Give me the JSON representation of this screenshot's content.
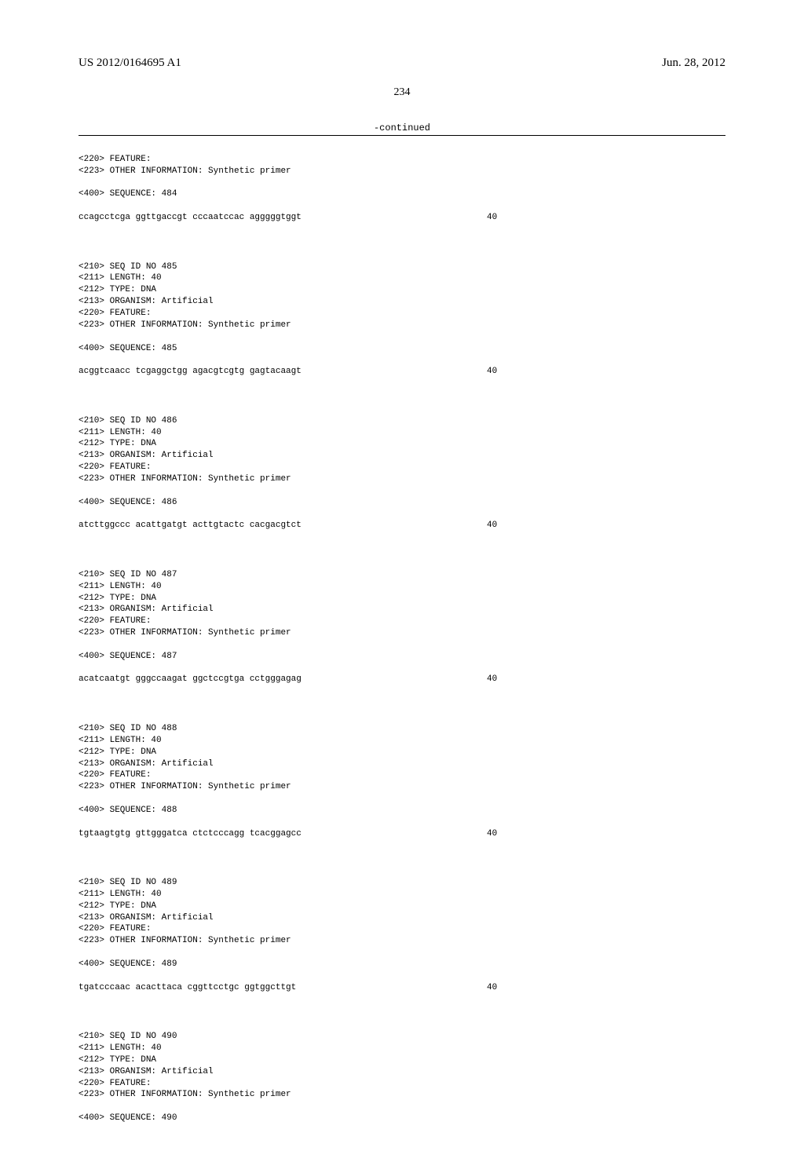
{
  "header": {
    "pub_number": "US 2012/0164695 A1",
    "pub_date": "Jun. 28, 2012"
  },
  "page_number": "234",
  "continued_label": "-continued",
  "first_block": {
    "lines": [
      "<220> FEATURE:",
      "<223> OTHER INFORMATION: Synthetic primer"
    ],
    "seq_label": "<400> SEQUENCE: 484",
    "sequence": "ccagcctcga ggttgaccgt cccaatccac agggggtggt",
    "count": "40"
  },
  "blocks": [
    {
      "lines": [
        "<210> SEQ ID NO 485",
        "<211> LENGTH: 40",
        "<212> TYPE: DNA",
        "<213> ORGANISM: Artificial",
        "<220> FEATURE:",
        "<223> OTHER INFORMATION: Synthetic primer"
      ],
      "seq_label": "<400> SEQUENCE: 485",
      "sequence": "acggtcaacc tcgaggctgg agacgtcgtg gagtacaagt",
      "count": "40"
    },
    {
      "lines": [
        "<210> SEQ ID NO 486",
        "<211> LENGTH: 40",
        "<212> TYPE: DNA",
        "<213> ORGANISM: Artificial",
        "<220> FEATURE:",
        "<223> OTHER INFORMATION: Synthetic primer"
      ],
      "seq_label": "<400> SEQUENCE: 486",
      "sequence": "atcttggccc acattgatgt acttgtactc cacgacgtct",
      "count": "40"
    },
    {
      "lines": [
        "<210> SEQ ID NO 487",
        "<211> LENGTH: 40",
        "<212> TYPE: DNA",
        "<213> ORGANISM: Artificial",
        "<220> FEATURE:",
        "<223> OTHER INFORMATION: Synthetic primer"
      ],
      "seq_label": "<400> SEQUENCE: 487",
      "sequence": "acatcaatgt gggccaagat ggctccgtga cctgggagag",
      "count": "40"
    },
    {
      "lines": [
        "<210> SEQ ID NO 488",
        "<211> LENGTH: 40",
        "<212> TYPE: DNA",
        "<213> ORGANISM: Artificial",
        "<220> FEATURE:",
        "<223> OTHER INFORMATION: Synthetic primer"
      ],
      "seq_label": "<400> SEQUENCE: 488",
      "sequence": "tgtaagtgtg gttgggatca ctctcccagg tcacggagcc",
      "count": "40"
    },
    {
      "lines": [
        "<210> SEQ ID NO 489",
        "<211> LENGTH: 40",
        "<212> TYPE: DNA",
        "<213> ORGANISM: Artificial",
        "<220> FEATURE:",
        "<223> OTHER INFORMATION: Synthetic primer"
      ],
      "seq_label": "<400> SEQUENCE: 489",
      "sequence": "tgatcccaac acacttaca cggttcctgc ggtggcttgt",
      "count": "40"
    }
  ],
  "last_block": {
    "lines": [
      "<210> SEQ ID NO 490",
      "<211> LENGTH: 40",
      "<212> TYPE: DNA",
      "<213> ORGANISM: Artificial",
      "<220> FEATURE:",
      "<223> OTHER INFORMATION: Synthetic primer"
    ],
    "seq_label": "<400> SEQUENCE: 490"
  }
}
